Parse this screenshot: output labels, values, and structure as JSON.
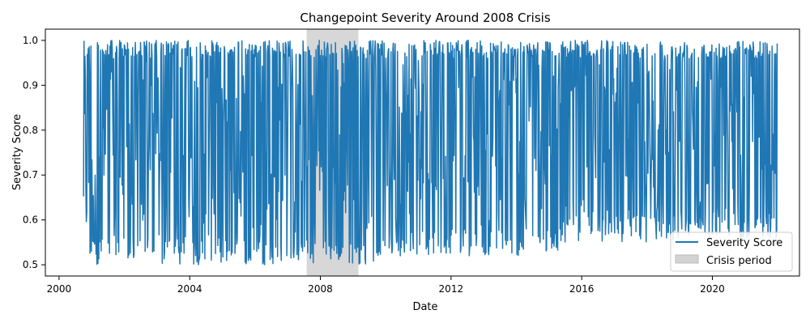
{
  "chart_data": {
    "type": "line",
    "title": "Changepoint Severity Around 2008 Crisis",
    "xlabel": "Date",
    "ylabel": "Severity Score",
    "xlim": [
      "1999-08-01",
      "2022-09-01"
    ],
    "ylim": [
      0.475,
      1.025
    ],
    "x_ticks": [
      {
        "label": "2000",
        "date": "2000-01-01"
      },
      {
        "label": "2004",
        "date": "2004-01-01"
      },
      {
        "label": "2008",
        "date": "2008-01-01"
      },
      {
        "label": "2012",
        "date": "2012-01-01"
      },
      {
        "label": "2016",
        "date": "2016-01-01"
      },
      {
        "label": "2020",
        "date": "2020-01-01"
      }
    ],
    "y_ticks": [
      0.5,
      0.6,
      0.7,
      0.8,
      0.9,
      1.0
    ],
    "y_tick_labels": [
      "0.5",
      "0.6",
      "0.7",
      "0.8",
      "0.9",
      "1.0"
    ],
    "grid": false,
    "shaded_region": {
      "name": "Crisis period",
      "start": "2007-08-01",
      "end": "2009-03-01",
      "color": "#d3d3d3"
    },
    "series": [
      {
        "name": "Severity Score",
        "color": "#1f77b4",
        "start": "2000-10-01",
        "end": "2021-12-31",
        "points": 1500,
        "description_values": {
          "min": 0.5,
          "max": 1.0
        },
        "segments": [
          {
            "start": "2000-10-01",
            "end": "2010-01-01",
            "low": 0.5,
            "high": 1.0
          },
          {
            "start": "2010-01-01",
            "end": "2015-06-01",
            "low": 0.52,
            "high": 1.0
          },
          {
            "start": "2015-06-01",
            "end": "2019-01-01",
            "low": 0.55,
            "high": 1.0
          },
          {
            "start": "2019-01-01",
            "end": "2021-12-31",
            "low": 0.56,
            "high": 1.0
          }
        ]
      }
    ],
    "legend": {
      "position": "bottom-right",
      "entries": [
        {
          "label": "Severity Score",
          "kind": "line",
          "color": "#1f77b4"
        },
        {
          "label": "Crisis period",
          "kind": "patch",
          "color": "#d3d3d3"
        }
      ]
    }
  }
}
